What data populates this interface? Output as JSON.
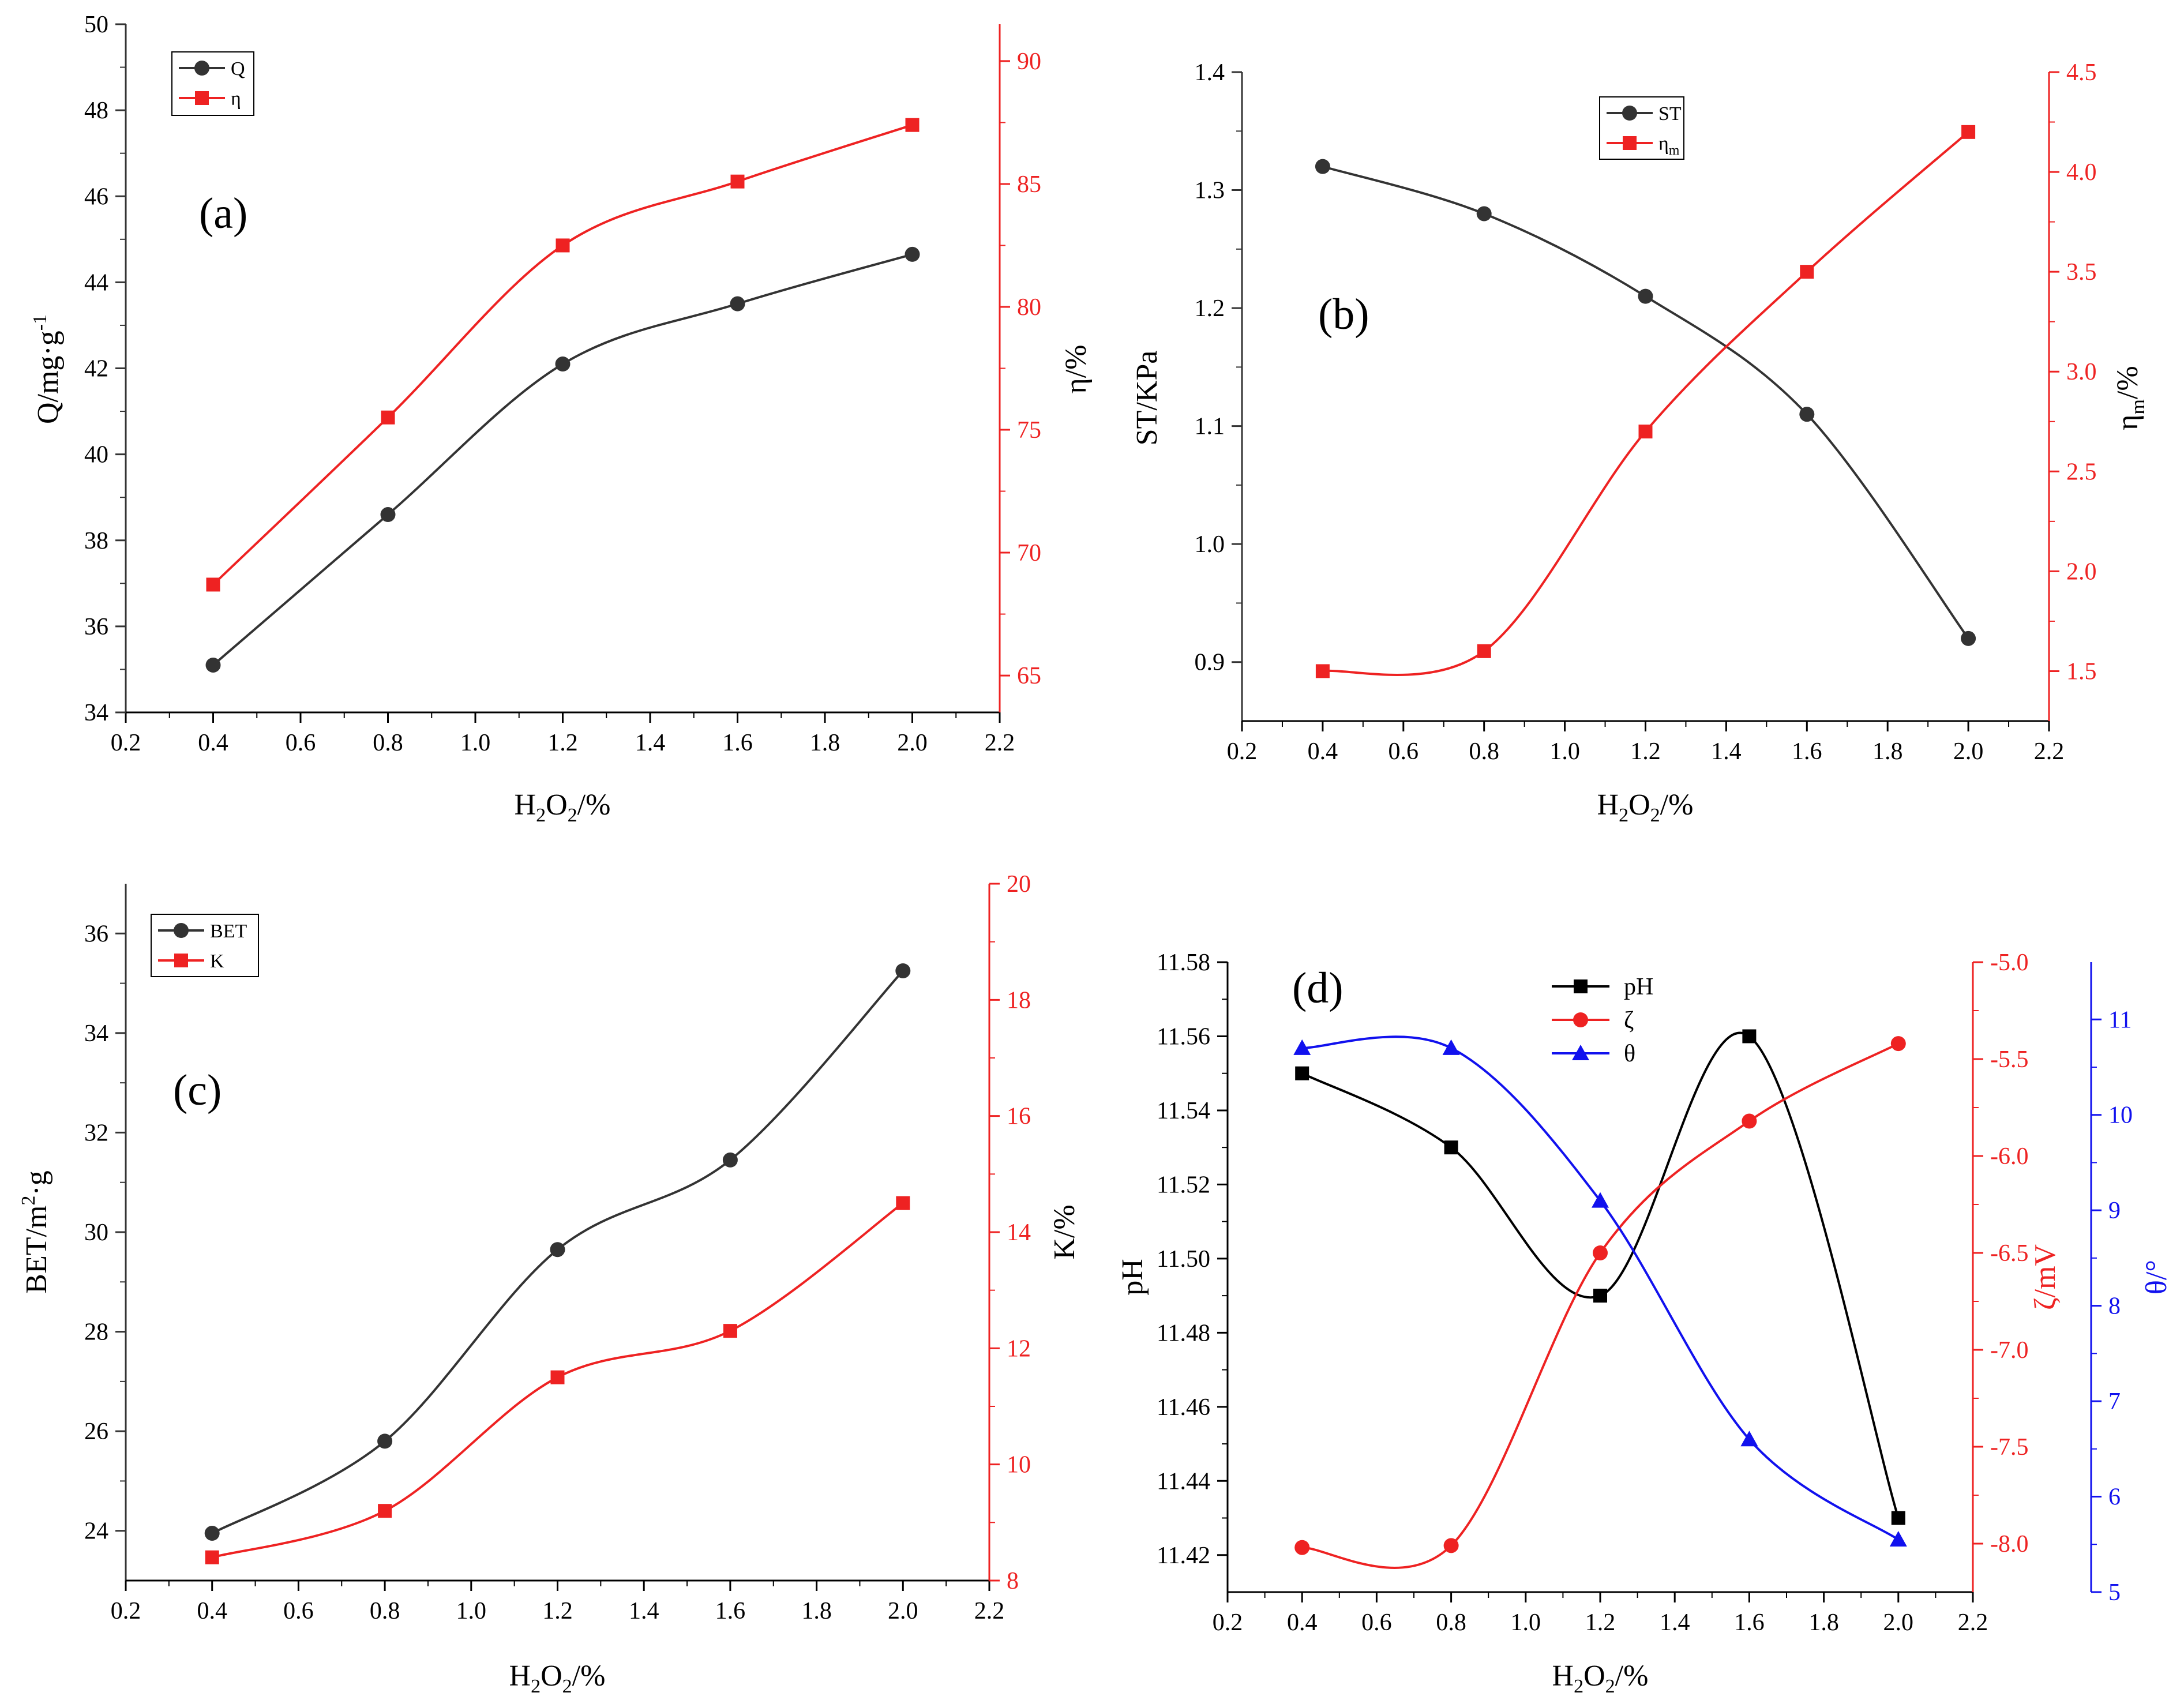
{
  "colors": {
    "black": "#333333",
    "red": "#ee2222",
    "blue": "#1111ee",
    "pure_black": "#000000"
  },
  "chart_data": [
    {
      "panel": "a",
      "type": "line",
      "panel_label": "(a)",
      "x": [
        0.4,
        0.8,
        1.2,
        1.6,
        2.0
      ],
      "xlim": [
        0.2,
        2.2
      ],
      "xticks": [
        "0.2",
        "0.4",
        "0.6",
        "0.8",
        "1.0",
        "1.2",
        "1.4",
        "1.6",
        "1.8",
        "2.0",
        "2.2"
      ],
      "xlabel_main": "H",
      "xlabel_sub1": "2",
      "xlabel_mid": "O",
      "xlabel_sub2": "2",
      "xlabel_tail": "/%",
      "left_axis": {
        "label": "Q/mg·g",
        "label_sup": "-1",
        "ylim": [
          34,
          50
        ],
        "ticks": [
          "34",
          "36",
          "38",
          "40",
          "42",
          "44",
          "46",
          "48",
          "50"
        ]
      },
      "right_axis": {
        "label": "η/%",
        "ylim": [
          63.5,
          91.5
        ],
        "ticks": [
          "65",
          "70",
          "75",
          "80",
          "85",
          "90"
        ]
      },
      "series": [
        {
          "name": "Q",
          "axis": "left",
          "color": "black",
          "marker": "circle",
          "values": [
            35.1,
            38.6,
            42.1,
            43.5,
            44.65
          ]
        },
        {
          "name": "η",
          "axis": "right",
          "color": "red",
          "marker": "square",
          "values": [
            68.7,
            75.5,
            82.5,
            85.1,
            87.4
          ]
        }
      ],
      "legend": [
        "Q",
        "η"
      ]
    },
    {
      "panel": "b",
      "type": "line",
      "panel_label": "(b)",
      "x": [
        0.4,
        0.8,
        1.2,
        1.6,
        2.0
      ],
      "xlim": [
        0.2,
        2.2
      ],
      "xticks": [
        "0.2",
        "0.4",
        "0.6",
        "0.8",
        "1.0",
        "1.2",
        "1.4",
        "1.6",
        "1.8",
        "2.0",
        "2.2"
      ],
      "xlabel_main": "H",
      "xlabel_sub1": "2",
      "xlabel_mid": "O",
      "xlabel_sub2": "2",
      "xlabel_tail": "/%",
      "left_axis": {
        "label": "ST/KPa",
        "ylim": [
          0.85,
          1.4
        ],
        "ticks": [
          "0.9",
          "1.0",
          "1.1",
          "1.2",
          "1.3",
          "1.4"
        ]
      },
      "right_axis": {
        "label": "η",
        "label_sub": "m",
        "label_tail": "/%",
        "ylim": [
          1.25,
          4.5
        ],
        "ticks": [
          "1.5",
          "2.0",
          "2.5",
          "3.0",
          "3.5",
          "4.0",
          "4.5"
        ]
      },
      "series": [
        {
          "name": "ST",
          "axis": "left",
          "color": "black",
          "marker": "circle",
          "values": [
            1.32,
            1.28,
            1.21,
            1.11,
            0.92
          ]
        },
        {
          "name": "η_m",
          "axis": "right",
          "color": "red",
          "marker": "square",
          "values": [
            1.5,
            1.6,
            2.7,
            3.5,
            4.2
          ]
        }
      ],
      "legend": [
        "ST",
        "η",
        "m"
      ]
    },
    {
      "panel": "c",
      "type": "line",
      "panel_label": "(c)",
      "x": [
        0.4,
        0.8,
        1.2,
        1.6,
        2.0
      ],
      "xlim": [
        0.2,
        2.2
      ],
      "xticks": [
        "0.2",
        "0.4",
        "0.6",
        "0.8",
        "1.0",
        "1.2",
        "1.4",
        "1.6",
        "1.8",
        "2.0",
        "2.2"
      ],
      "xlabel_main": "H",
      "xlabel_sub1": "2",
      "xlabel_mid": "O",
      "xlabel_sub2": "2",
      "xlabel_tail": "/%",
      "left_axis": {
        "label": "BET/m",
        "label_sup": "2",
        "label_tail": "·g",
        "ylim": [
          23,
          37
        ],
        "ticks": [
          "24",
          "26",
          "28",
          "30",
          "32",
          "34",
          "36"
        ]
      },
      "right_axis": {
        "label": "K/%",
        "ylim": [
          8,
          20
        ],
        "ticks": [
          "8",
          "10",
          "12",
          "14",
          "16",
          "18",
          "20"
        ]
      },
      "series": [
        {
          "name": "BET",
          "axis": "left",
          "color": "black",
          "marker": "circle",
          "values": [
            23.95,
            25.8,
            29.65,
            31.45,
            35.25
          ]
        },
        {
          "name": "K",
          "axis": "right",
          "color": "red",
          "marker": "square",
          "values": [
            8.4,
            9.2,
            11.5,
            12.3,
            14.5
          ]
        }
      ],
      "legend": [
        "BET",
        "K"
      ]
    },
    {
      "panel": "d",
      "type": "line",
      "panel_label": "(d)",
      "x": [
        0.4,
        0.8,
        1.2,
        1.6,
        2.0
      ],
      "xlim": [
        0.2,
        2.2
      ],
      "xticks": [
        "0.2",
        "0.4",
        "0.6",
        "0.8",
        "1.0",
        "1.2",
        "1.4",
        "1.6",
        "1.8",
        "2.0",
        "2.2"
      ],
      "xlabel_main": "H",
      "xlabel_sub1": "2",
      "xlabel_mid": "O",
      "xlabel_sub2": "2",
      "xlabel_tail": "/%",
      "left_axis": {
        "label": "pH",
        "ylim": [
          11.41,
          11.58
        ],
        "ticks": [
          "11.42",
          "11.44",
          "11.46",
          "11.48",
          "11.50",
          "11.52",
          "11.54",
          "11.56",
          "11.58"
        ]
      },
      "right_axis": {
        "label": "ζ/mV",
        "ylim": [
          -8.25,
          -5.0
        ],
        "ticks": [
          "-8.0",
          "-7.5",
          "-7.0",
          "-6.5",
          "-6.0",
          "-5.5",
          "-5.0"
        ]
      },
      "right_axis2": {
        "label": "θ/°",
        "ylim": [
          5,
          11.6
        ],
        "ticks": [
          "5",
          "6",
          "7",
          "8",
          "9",
          "10",
          "11"
        ]
      },
      "series": [
        {
          "name": "pH",
          "axis": "left",
          "color": "pure_black",
          "marker": "square",
          "values": [
            11.55,
            11.53,
            11.49,
            11.56,
            11.43
          ]
        },
        {
          "name": "ζ",
          "axis": "right",
          "color": "red",
          "marker": "circle",
          "values": [
            -8.02,
            -8.01,
            -6.5,
            -5.82,
            -5.42
          ]
        },
        {
          "name": "θ",
          "axis": "right2",
          "color": "blue",
          "marker": "triangle",
          "values": [
            10.7,
            10.7,
            9.1,
            6.6,
            5.55
          ]
        }
      ],
      "legend": [
        "pH",
        "ζ",
        "θ"
      ]
    }
  ]
}
